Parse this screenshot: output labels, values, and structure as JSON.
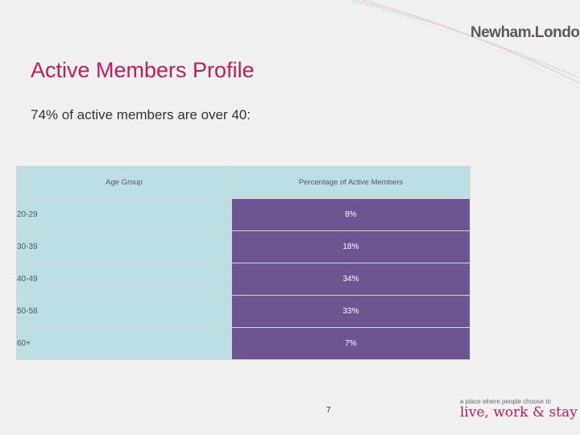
{
  "header": {
    "logo_text": "Newham London",
    "logo_part1": "Newham",
    "logo_part2": "London"
  },
  "slide": {
    "title": "Active Members Profile",
    "subtitle": "74% of active members are over 40:",
    "page_number": "7"
  },
  "table": {
    "headers": [
      "Age Group",
      "Percentage of Active Members"
    ],
    "rows": [
      {
        "age": "20-29",
        "pct": "8%"
      },
      {
        "age": "30-39",
        "pct": "18%"
      },
      {
        "age": "40-49",
        "pct": "34%"
      },
      {
        "age": "50-58",
        "pct": "33%"
      },
      {
        "age": "60+",
        "pct": "7%"
      }
    ]
  },
  "footer": {
    "tagline_small": "a place where people choose to",
    "tagline_big": "live, work & stay"
  },
  "colors": {
    "accent": "#c21c5c",
    "header_cell": "#bddfe3",
    "value_cell": "#6c5590"
  }
}
